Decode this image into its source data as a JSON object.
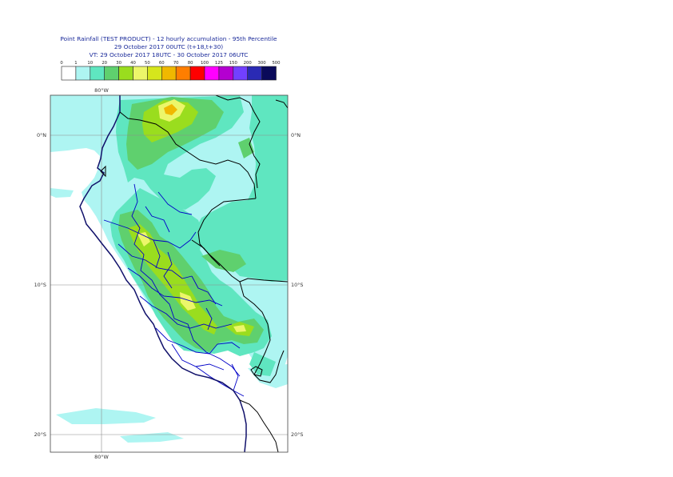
{
  "title": {
    "line1": "Point Rainfall (TEST PRODUCT) - 12 hourly accumulation - 95th Percentile",
    "line2": "29 October 2017 00UTC (t+18,t+30)",
    "line3": "VT: 29 October 2017 18UTC - 30 October 2017 06UTC"
  },
  "legend": {
    "thresholds": [
      "0",
      "1",
      "10",
      "20",
      "30",
      "40",
      "50",
      "60",
      "70",
      "80",
      "100",
      "125",
      "150",
      "200",
      "300",
      "500"
    ],
    "colors": [
      "#ffffff",
      "#aef5f2",
      "#5fe6c0",
      "#5fd06e",
      "#9add1e",
      "#ecf66a",
      "#d6e61c",
      "#f0b800",
      "#ff7e00",
      "#ff0000",
      "#ff00ff",
      "#b400d0",
      "#7240ff",
      "#2a2ab4",
      "#0a0a5a"
    ]
  },
  "axes": {
    "lon_top": "80°W",
    "lon_bottom": "80°W",
    "lat_0_left": "0°N",
    "lat_0_right": "0°N",
    "lat_10_left": "10°S",
    "lat_10_right": "10°S",
    "lat_20_left": "20°S",
    "lat_20_right": "20°S"
  },
  "colors": {
    "ocean_bg": "#ffffff",
    "light_rain": "#aef5f2",
    "moderate_rain": "#5fe6c0",
    "heavy_rain": "#5fd06e",
    "very_heavy_rain": "#9add1e",
    "country_border": "#000000",
    "region_border": "#0000c8",
    "grid": "#8c8c8c"
  }
}
